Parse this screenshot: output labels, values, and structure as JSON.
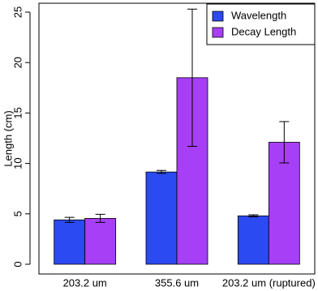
{
  "chart_data": {
    "type": "bar",
    "ylabel": "Length (cm)",
    "categories": [
      "203.2 um",
      "355.6 um",
      "203.2 um (ruptured)"
    ],
    "series": [
      {
        "name": "Wavelength",
        "color": "#2b4af2",
        "values": [
          4.4,
          9.15,
          4.8
        ],
        "errors": [
          0.25,
          0.15,
          0.1
        ]
      },
      {
        "name": "Decay Length",
        "color": "#a63ff5",
        "values": [
          4.55,
          18.5,
          12.1
        ],
        "errors": [
          0.4,
          6.8,
          2.05
        ]
      }
    ],
    "ylim": [
      0,
      25
    ],
    "yticks": [
      0,
      5,
      10,
      15,
      20,
      25
    ],
    "legend": "top-right"
  }
}
